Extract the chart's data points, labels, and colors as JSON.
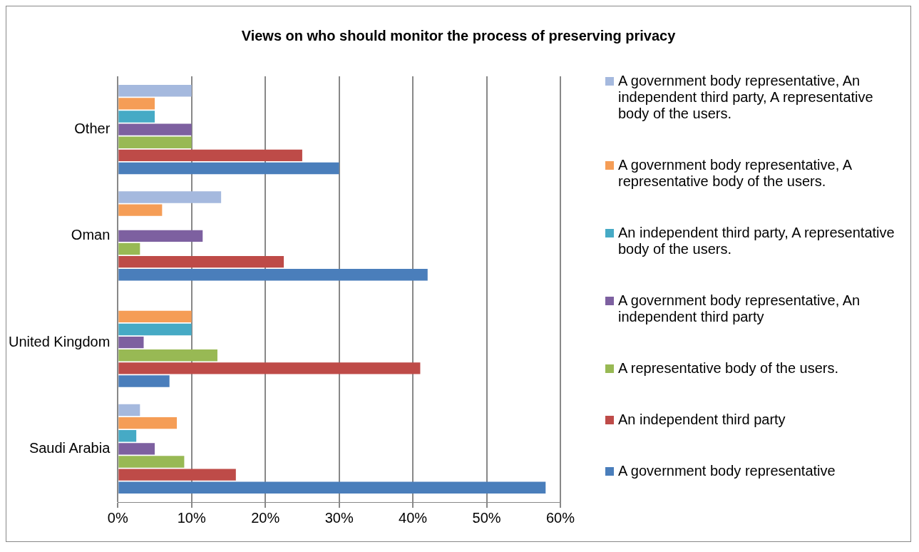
{
  "chart_data": {
    "type": "bar",
    "orientation": "horizontal",
    "title": "Views on who should monitor the process of preserving privacy",
    "categories": [
      "Other",
      "Oman",
      "United Kingdom",
      "Saudi Arabia"
    ],
    "series": [
      {
        "name": "A government body representative",
        "color": "#4a7ebb",
        "values": [
          30,
          42,
          7,
          58
        ]
      },
      {
        "name": "An independent third party",
        "color": "#be4b48",
        "values": [
          25,
          22.5,
          41,
          16
        ]
      },
      {
        "name": "A representative body of the users.",
        "color": "#98b954",
        "values": [
          10,
          3,
          13.5,
          9
        ]
      },
      {
        "name": "A government body representative, An independent third party",
        "color": "#7d60a0",
        "values": [
          10,
          11.5,
          3.5,
          5
        ]
      },
      {
        "name": "An independent third party, A representative body of the users.",
        "color": "#46aac5",
        "values": [
          5,
          0,
          10,
          2.5
        ]
      },
      {
        "name": "A government body representative, A representative body of the users.",
        "color": "#f59d56",
        "values": [
          5,
          6,
          10,
          8
        ]
      },
      {
        "name": "A government body representative, An independent third party, A representative body of the users.",
        "color": "#a5b9de",
        "values": [
          10,
          14,
          0,
          3
        ]
      }
    ],
    "xlim": [
      0,
      60
    ],
    "xticks": [
      {
        "value": 0,
        "label": "0%"
      },
      {
        "value": 10,
        "label": "10%"
      },
      {
        "value": 20,
        "label": "20%"
      },
      {
        "value": 30,
        "label": "30%"
      },
      {
        "value": 40,
        "label": "40%"
      },
      {
        "value": 50,
        "label": "50%"
      },
      {
        "value": 60,
        "label": "60%"
      }
    ],
    "grid": "x",
    "legend": "right"
  }
}
